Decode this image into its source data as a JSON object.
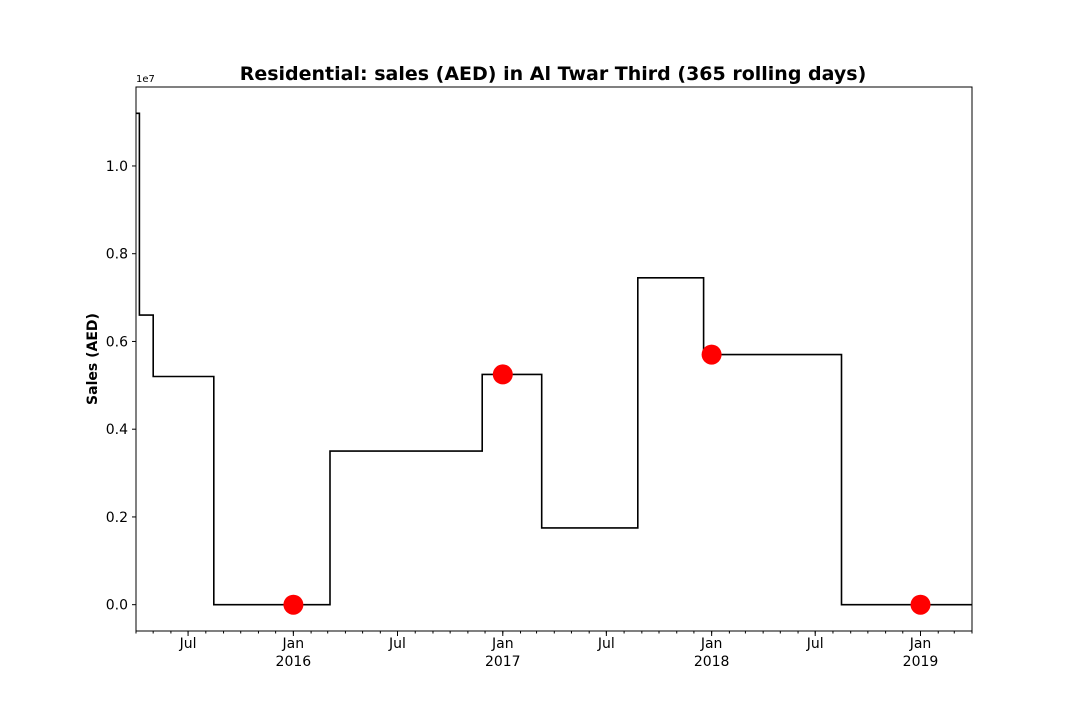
{
  "chart_data": {
    "type": "line",
    "title": "Residential: sales (AED) in Al Twar Third (365 rolling days)",
    "xlabel": "",
    "ylabel": "Sales (AED)",
    "y_offset_label": "1e7",
    "y_scale_multiplier": 10000000,
    "xlim": [
      "2015-04-01",
      "2019-04-01"
    ],
    "ylim": [
      -0.06,
      1.18
    ],
    "grid": false,
    "legend": "none",
    "step_series": {
      "x": [
        "2015-04-01",
        "2015-04-07",
        "2015-05-01",
        "2015-08-15",
        "2016-03-05",
        "2016-11-26",
        "2017-03-10",
        "2017-08-25",
        "2017-12-18",
        "2018-08-16",
        "2019-04-01"
      ],
      "y": [
        1.12,
        0.66,
        0.52,
        0.0,
        0.35,
        0.525,
        0.175,
        0.745,
        0.57,
        0.0,
        0.0
      ],
      "color": "#000000"
    },
    "marker_series": {
      "x": [
        "2016-01-01",
        "2017-01-01",
        "2018-01-01",
        "2019-01-01"
      ],
      "y": [
        0.0,
        0.525,
        0.57,
        0.0
      ],
      "color": "#ff0000"
    },
    "y_ticks": [
      0.0,
      0.2,
      0.4,
      0.6,
      0.8,
      1.0
    ],
    "y_tick_labels": [
      "0.0",
      "0.2",
      "0.4",
      "0.6",
      "0.8",
      "1.0"
    ],
    "x_major_ticks": [
      {
        "date": "2015-07-01",
        "line1": "Jul",
        "line2": ""
      },
      {
        "date": "2016-01-01",
        "line1": "Jan",
        "line2": "2016"
      },
      {
        "date": "2016-07-01",
        "line1": "Jul",
        "line2": ""
      },
      {
        "date": "2017-01-01",
        "line1": "Jan",
        "line2": "2017"
      },
      {
        "date": "2017-07-01",
        "line1": "Jul",
        "line2": ""
      },
      {
        "date": "2018-01-01",
        "line1": "Jan",
        "line2": "2018"
      },
      {
        "date": "2018-07-01",
        "line1": "Jul",
        "line2": ""
      },
      {
        "date": "2019-01-01",
        "line1": "Jan",
        "line2": "2019"
      }
    ]
  }
}
